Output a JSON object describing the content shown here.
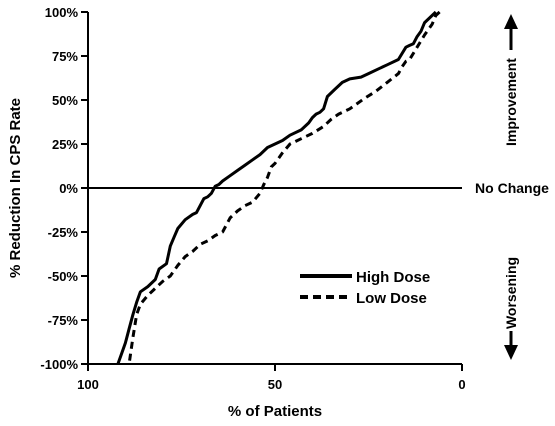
{
  "chart_data": {
    "type": "line",
    "xlabel": "% of Patients",
    "ylabel": "% Reduction In CPS Rate",
    "xlim": [
      100,
      0
    ],
    "ylim": [
      -100,
      100
    ],
    "x_reversed": true,
    "x_ticks": [
      100,
      50,
      0
    ],
    "x_tick_labels": [
      "100",
      "50",
      "0"
    ],
    "y_ticks": [
      100,
      75,
      50,
      25,
      0,
      -25,
      -50,
      -75,
      -100
    ],
    "y_tick_labels": [
      "100%",
      "75%",
      "50%",
      "25%",
      "0%",
      "-25%",
      "-50%",
      "-75%",
      "-100%"
    ],
    "grid": false,
    "legend_position": "lower-right",
    "reference_line": {
      "y": 0,
      "label": "No Change"
    },
    "side_labels": {
      "upper": "Improvement",
      "lower": "Worsening"
    },
    "series": [
      {
        "name": "High Dose",
        "style": "solid",
        "x": [
          7,
          8,
          10,
          11,
          12,
          13,
          14,
          15,
          17,
          20,
          22,
          25,
          27,
          30,
          32,
          34,
          36,
          37,
          38,
          39,
          40,
          41,
          43,
          46,
          48,
          50,
          52,
          54,
          56,
          58,
          60,
          62,
          64,
          65,
          66,
          67,
          68,
          69,
          70,
          71,
          72,
          74,
          76,
          77,
          78,
          79,
          81,
          82,
          84,
          86,
          87,
          88,
          89,
          90,
          91,
          92
        ],
        "y": [
          100,
          98,
          94,
          89,
          86,
          82,
          81,
          80,
          73,
          70,
          68,
          65,
          63,
          62,
          60,
          56,
          52,
          45,
          43,
          42,
          40,
          37,
          33,
          30,
          27,
          25,
          23,
          19,
          16,
          13,
          10,
          7,
          4,
          2,
          1,
          -3,
          -5,
          -6,
          -10,
          -14,
          -15,
          -18,
          -23,
          -28,
          -33,
          -43,
          -46,
          -52,
          -56,
          -59,
          -65,
          -72,
          -80,
          -88,
          -94,
          -100
        ]
      },
      {
        "name": "Low Dose",
        "style": "dashed",
        "x": [
          6,
          7,
          8,
          10,
          12,
          14,
          15,
          16,
          17,
          20,
          23,
          26,
          30,
          33,
          35,
          37,
          40,
          43,
          46,
          48,
          50,
          51,
          52,
          53,
          54,
          56,
          58,
          60,
          62,
          64,
          66,
          68,
          70,
          72,
          74,
          76,
          78,
          80,
          82,
          84,
          86,
          87,
          88,
          89
        ],
        "y": [
          100,
          98,
          93,
          87,
          80,
          73,
          72,
          69,
          65,
          60,
          55,
          51,
          45,
          42,
          39,
          35,
          31,
          28,
          25,
          20,
          14,
          12,
          6,
          2,
          -3,
          -8,
          -10,
          -13,
          -17,
          -25,
          -27,
          -30,
          -32,
          -36,
          -39,
          -44,
          -50,
          -53,
          -57,
          -61,
          -66,
          -72,
          -85,
          -100
        ]
      }
    ]
  }
}
